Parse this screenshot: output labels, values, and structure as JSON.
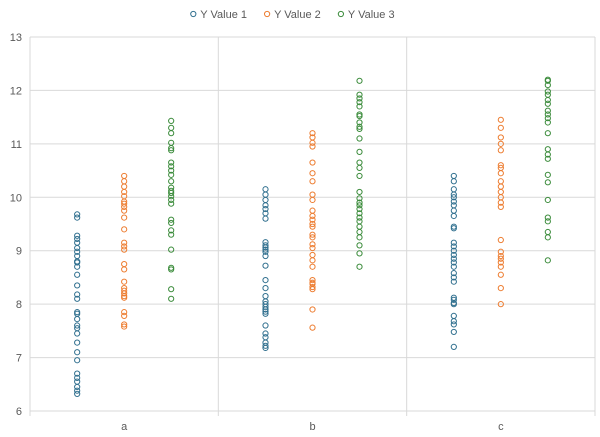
{
  "chart_data": {
    "type": "scatter",
    "title": "",
    "xlabel": "",
    "ylabel": "",
    "categories": [
      "a",
      "b",
      "c"
    ],
    "ylim": [
      6,
      13
    ],
    "yticks": [
      6,
      7,
      8,
      9,
      10,
      11,
      12,
      13
    ],
    "grid": true,
    "legend_position": "top",
    "series": [
      {
        "name": "Y Value 1",
        "color": "#31708f",
        "values": {
          "a": [
            6.32,
            6.38,
            6.45,
            6.55,
            6.62,
            6.7,
            6.95,
            7.1,
            7.28,
            7.45,
            7.55,
            7.6,
            7.72,
            7.82,
            7.85,
            8.1,
            8.18,
            8.35,
            8.55,
            8.7,
            8.78,
            8.8,
            8.9,
            8.98,
            9.05,
            9.15,
            9.22,
            9.28,
            9.62,
            9.68
          ],
          "b": [
            7.18,
            7.22,
            7.28,
            7.38,
            7.45,
            7.6,
            7.82,
            7.86,
            7.9,
            7.95,
            8.0,
            8.05,
            8.15,
            8.3,
            8.45,
            8.72,
            8.9,
            8.98,
            9.02,
            9.06,
            9.1,
            9.16,
            9.6,
            9.7,
            9.78,
            9.85,
            9.95,
            10.05,
            10.15
          ],
          "c": [
            7.2,
            7.48,
            7.62,
            7.68,
            7.78,
            8.0,
            8.02,
            8.08,
            8.12,
            8.42,
            8.5,
            8.58,
            8.7,
            8.78,
            8.85,
            8.92,
            9.0,
            9.08,
            9.15,
            9.42,
            9.45,
            9.65,
            9.75,
            9.85,
            9.92,
            10.0,
            10.05,
            10.15,
            10.3,
            10.4
          ]
        }
      },
      {
        "name": "Y Value 2",
        "color": "#ed7d31",
        "values": {
          "a": [
            7.58,
            7.62,
            7.78,
            7.85,
            8.12,
            8.15,
            8.2,
            8.25,
            8.3,
            8.42,
            8.65,
            8.75,
            9.02,
            9.08,
            9.15,
            9.4,
            9.62,
            9.75,
            9.82,
            9.88,
            9.92,
            10.02,
            10.1,
            10.2,
            10.3,
            10.4
          ],
          "b": [
            7.56,
            7.9,
            8.28,
            8.32,
            8.38,
            8.4,
            8.45,
            8.7,
            8.82,
            8.92,
            9.05,
            9.12,
            9.25,
            9.3,
            9.45,
            9.5,
            9.58,
            9.65,
            9.75,
            9.95,
            10.05,
            10.3,
            10.45,
            10.65,
            10.95,
            11.02,
            11.12,
            11.2
          ],
          "c": [
            8.0,
            8.3,
            8.55,
            8.7,
            8.78,
            8.85,
            8.9,
            8.98,
            9.2,
            9.82,
            9.9,
            10.0,
            10.1,
            10.2,
            10.3,
            10.45,
            10.55,
            10.6,
            10.88,
            11.0,
            11.12,
            11.3,
            11.45
          ]
        }
      },
      {
        "name": "Y Value 3",
        "color": "#3c8c3c",
        "values": {
          "a": [
            8.1,
            8.28,
            8.65,
            8.68,
            9.02,
            9.3,
            9.38,
            9.52,
            9.58,
            9.88,
            9.95,
            10.02,
            10.08,
            10.12,
            10.18,
            10.3,
            10.42,
            10.5,
            10.58,
            10.65,
            10.88,
            10.92,
            11.02,
            11.2,
            11.3,
            11.43
          ],
          "b": [
            8.7,
            8.95,
            9.1,
            9.25,
            9.35,
            9.45,
            9.55,
            9.62,
            9.7,
            9.78,
            9.85,
            9.9,
            9.98,
            10.1,
            10.4,
            10.55,
            10.65,
            10.85,
            11.1,
            11.28,
            11.32,
            11.4,
            11.52,
            11.55,
            11.7,
            11.78,
            11.85,
            11.92,
            12.18
          ],
          "c": [
            8.82,
            9.25,
            9.35,
            9.55,
            9.62,
            9.95,
            10.28,
            10.42,
            10.72,
            10.8,
            10.9,
            11.2,
            11.4,
            11.48,
            11.55,
            11.62,
            11.75,
            11.82,
            11.92,
            11.98,
            12.1,
            12.18,
            12.2
          ]
        }
      }
    ]
  }
}
